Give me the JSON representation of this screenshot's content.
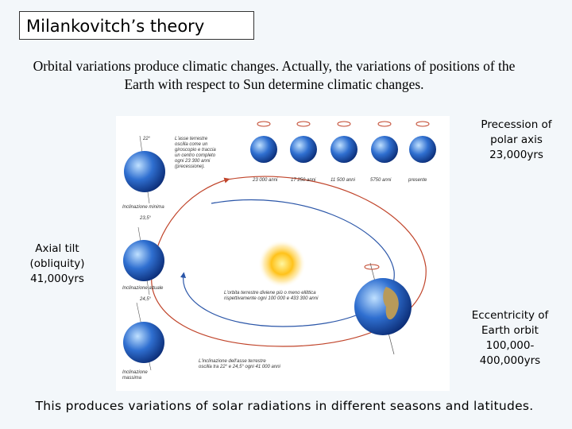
{
  "title": "Milankovitch’s theory",
  "intro": "Orbital variations produce climatic changes. Actually, the variations of positions of the Earth with respect to Sun determine climatic changes.",
  "labels": {
    "precession": "Precession of\npolar axis\n23,000yrs",
    "tilt": "Axial tilt\n(obliquity)\n41,000yrs",
    "eccentricity": "Eccentricity of\nEarth orbit\n100,000-\n400,000yrs"
  },
  "figure": {
    "precession_note": "L'asse terrestre\noscilla come un\ngiroscopio e traccia\nun centro completo\nogni 23 300 anni\n(precessione).",
    "times": [
      "23 000 anni",
      "17 250 anni",
      "11 500 anni",
      "5750 anni",
      "presente"
    ],
    "angles": [
      "22°",
      "23,5°",
      "24,5°"
    ],
    "tilt_names": [
      "Inclinazione minima",
      "Inclinazione attuale",
      "Inclinazione\nmassima"
    ],
    "orbit_note": "L'orbita terrestre diviene più o meno ellittica\nrispettivamente ogni 100 000 e 433 300 anni",
    "tilt_note": "L'inclinazione dell'asse terrestre\noscilla tra 22° e 24,5° ogni 41 000 anni"
  },
  "footer": "This produces variations of solar radiations in different seasons and latitudes."
}
